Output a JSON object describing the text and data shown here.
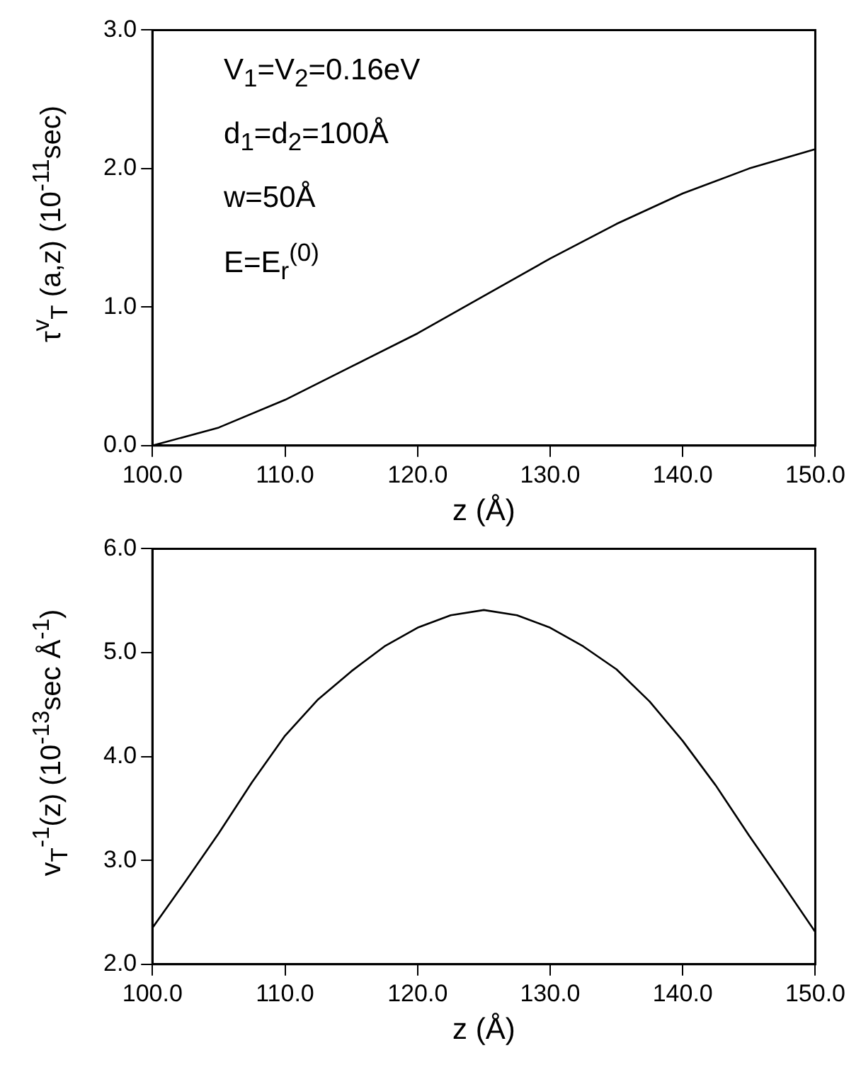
{
  "chart_data": [
    {
      "type": "line",
      "xlabel": "z (Å)",
      "ylabel": "τ$^{v}$$_{T}$ (a,z) (10$^{-11}$sec)",
      "color": "#000000",
      "grid": false,
      "marker": "none",
      "line_style": "solid",
      "annotations": [
        "V$_{1}$=V$_{2}$=0.16eV",
        "d$_{1}$=d$_{2}$=100Å",
        "w=50Å",
        "E=E$_{r}$$^{(0)}$"
      ],
      "x": [
        100,
        105,
        110,
        115,
        120,
        125,
        130,
        135,
        140,
        145,
        150
      ],
      "values": [
        0,
        0.13,
        0.33,
        0.57,
        0.81,
        1.08,
        1.35,
        1.6,
        1.82,
        2.0,
        2.14
      ],
      "xlim": [
        100,
        150
      ],
      "xticks": [
        {
          "value": 100,
          "label": "100.0"
        },
        {
          "value": 110,
          "label": "110.0"
        },
        {
          "value": 120,
          "label": "120.0"
        },
        {
          "value": 130,
          "label": "130.0"
        },
        {
          "value": 140,
          "label": "140.0"
        },
        {
          "value": 150,
          "label": "150.0"
        }
      ],
      "ylim": [
        0,
        3
      ],
      "yticks": [
        {
          "value": 0,
          "label": "0.0"
        },
        {
          "value": 1,
          "label": "1.0"
        },
        {
          "value": 2,
          "label": "2.0"
        },
        {
          "value": 3,
          "label": "3.0"
        }
      ]
    },
    {
      "type": "line",
      "xlabel": "z (Å)",
      "ylabel": "v$_{T}$$^{-1}$(z) (10$^{-13}$sec Å$^{-1}$)",
      "color": "#000000",
      "grid": false,
      "marker": "none",
      "line_style": "solid",
      "x": [
        100,
        102.5,
        105,
        107.5,
        110,
        112.5,
        115,
        117.5,
        120,
        122.5,
        125,
        127.5,
        130,
        132.5,
        135,
        137.5,
        140,
        142.5,
        145,
        147.5,
        150
      ],
      "values": [
        2.35,
        2.8,
        3.26,
        3.75,
        4.2,
        4.55,
        4.82,
        5.06,
        5.24,
        5.36,
        5.41,
        5.36,
        5.24,
        5.06,
        4.84,
        4.53,
        4.15,
        3.72,
        3.24,
        2.78,
        2.31
      ],
      "xlim": [
        100,
        150
      ],
      "xticks": [
        {
          "value": 100,
          "label": "100.0"
        },
        {
          "value": 110,
          "label": "110.0"
        },
        {
          "value": 120,
          "label": "120.0"
        },
        {
          "value": 130,
          "label": "130.0"
        },
        {
          "value": 140,
          "label": "140.0"
        },
        {
          "value": 150,
          "label": "150.0"
        }
      ],
      "ylim": [
        2,
        6
      ],
      "yticks": [
        {
          "value": 2,
          "label": "2.0"
        },
        {
          "value": 3,
          "label": "3.0"
        },
        {
          "value": 4,
          "label": "4.0"
        },
        {
          "value": 5,
          "label": "5.0"
        },
        {
          "value": 6,
          "label": "6.0"
        }
      ]
    }
  ]
}
